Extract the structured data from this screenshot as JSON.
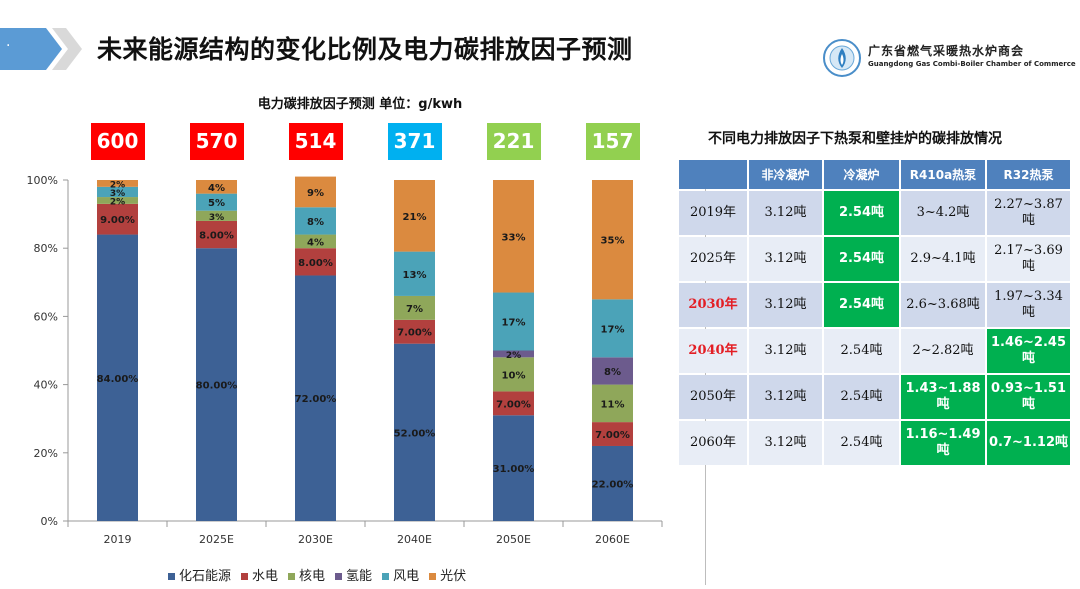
{
  "header": {
    "title": "未来能源结构的变化比例及电力碳排放因子预测",
    "dot": "·",
    "logo_name": "广东省燃气采暖热水炉商会",
    "logo_sub": "Guangdong Gas Combi-Boiler Chamber of Commerce"
  },
  "chart_title": "电力碳排放因子预测   单位：g/kwh",
  "factors": [
    {
      "value": "600",
      "color": "#ff0000"
    },
    {
      "value": "570",
      "color": "#ff0000"
    },
    {
      "value": "514",
      "color": "#ff0000"
    },
    {
      "value": "371",
      "color": "#00b0f0"
    },
    {
      "value": "221",
      "color": "#92d050"
    },
    {
      "value": "157",
      "color": "#92d050"
    }
  ],
  "chart_data": {
    "type": "bar",
    "stacked": true,
    "percent": true,
    "categories": [
      "2019",
      "2025E",
      "2030E",
      "2040E",
      "2050E",
      "2060E"
    ],
    "ylim": [
      0,
      100
    ],
    "yticks": [
      "0%",
      "20%",
      "40%",
      "60%",
      "80%",
      "100%"
    ],
    "series": [
      {
        "name": "化石能源",
        "color": "#3d6195",
        "values": [
          84,
          80,
          72,
          52,
          31,
          22
        ],
        "labels": [
          "84.00%",
          "80.00%",
          "72.00%",
          "52.00%",
          "31.00%",
          "22.00%"
        ]
      },
      {
        "name": "水电",
        "color": "#b2403e",
        "values": [
          9,
          8,
          8,
          7,
          7,
          7
        ],
        "labels": [
          "9.00%",
          "8.00%",
          "8.00%",
          "7.00%",
          "7.00%",
          "7.00%"
        ]
      },
      {
        "name": "核电",
        "color": "#8fa75a",
        "values": [
          2,
          3,
          4,
          7,
          10,
          11
        ],
        "labels": [
          "2%",
          "3%",
          "4%",
          "7%",
          "10%",
          "11%"
        ]
      },
      {
        "name": "氢能",
        "color": "#6c5b8d",
        "values": [
          0,
          0,
          0,
          0,
          2,
          8
        ],
        "labels": [
          "",
          "",
          "",
          "",
          "2%",
          "8%"
        ]
      },
      {
        "name": "风电",
        "color": "#4ba3b8",
        "values": [
          3,
          5,
          8,
          13,
          17,
          17
        ],
        "labels": [
          "3%",
          "5%",
          "8%",
          "13%",
          "17%",
          "17%"
        ]
      },
      {
        "name": "光伏",
        "color": "#db8a3f",
        "values": [
          2,
          4,
          9,
          21,
          33,
          35
        ],
        "labels": [
          "2%",
          "4%",
          "9%",
          "21%",
          "33%",
          "35%"
        ]
      }
    ]
  },
  "table": {
    "title": "不同电力排放因子下热泵和壁挂炉的碳排放情况",
    "headers": [
      "",
      "非冷凝炉",
      "冷凝炉",
      "R410a热泵",
      "R32热泵"
    ],
    "rows": [
      {
        "year": "2019年",
        "cells": [
          "3.12吨",
          "2.54吨",
          "3~4.2吨",
          "2.27~3.87吨"
        ],
        "red": false,
        "green": [
          false,
          true,
          false,
          false
        ]
      },
      {
        "year": "2025年",
        "cells": [
          "3.12吨",
          "2.54吨",
          "2.9~4.1吨",
          "2.17~3.69吨"
        ],
        "red": false,
        "green": [
          false,
          true,
          false,
          false
        ]
      },
      {
        "year": "2030年",
        "cells": [
          "3.12吨",
          "2.54吨",
          "2.6~3.68吨",
          "1.97~3.34吨"
        ],
        "red": true,
        "green": [
          false,
          true,
          false,
          false
        ]
      },
      {
        "year": "2040年",
        "cells": [
          "3.12吨",
          "2.54吨",
          "2~2.82吨",
          "1.46~2.45吨"
        ],
        "red": true,
        "green": [
          false,
          false,
          false,
          true
        ]
      },
      {
        "year": "2050年",
        "cells": [
          "3.12吨",
          "2.54吨",
          "1.43~1.88吨",
          "0.93~1.51吨"
        ],
        "red": false,
        "green": [
          false,
          false,
          true,
          true
        ]
      },
      {
        "year": "2060年",
        "cells": [
          "3.12吨",
          "2.54吨",
          "1.16~1.49吨",
          "0.7~1.12吨"
        ],
        "red": false,
        "green": [
          false,
          false,
          true,
          true
        ]
      }
    ]
  }
}
